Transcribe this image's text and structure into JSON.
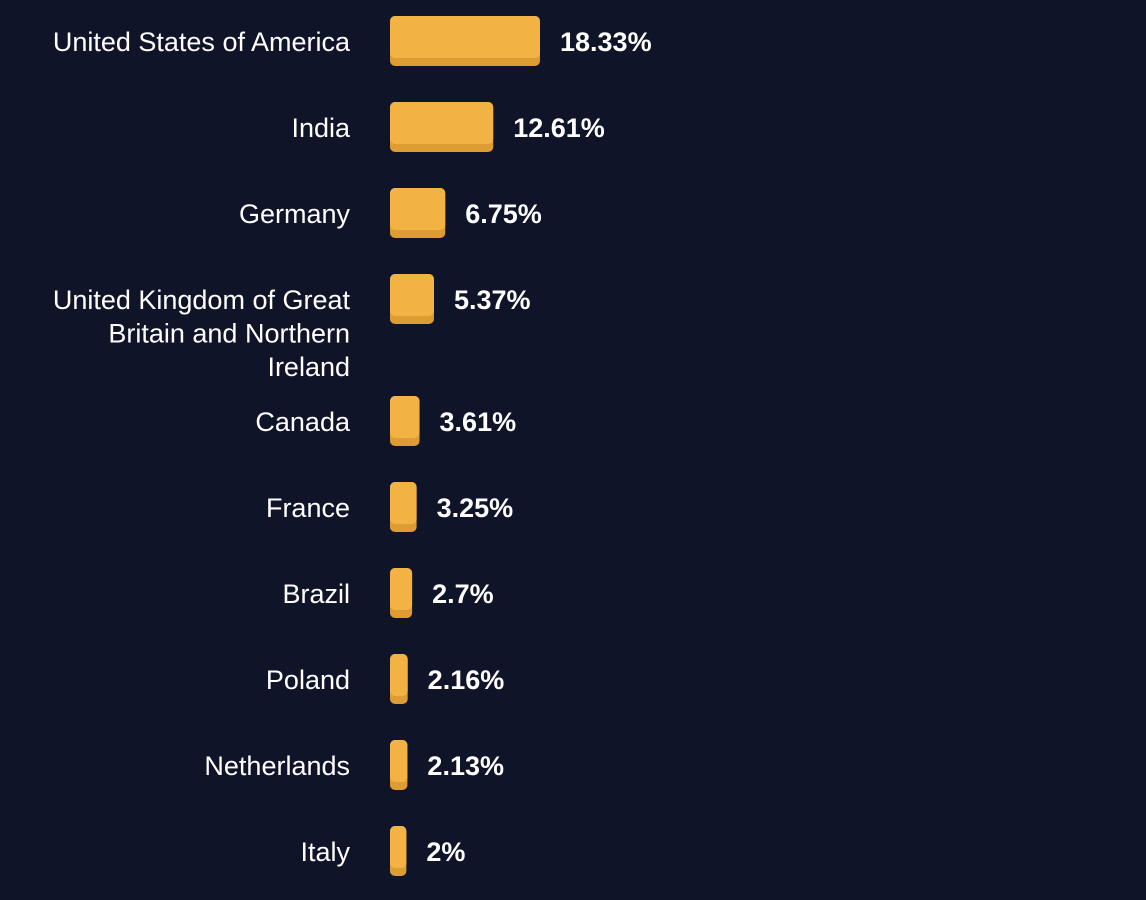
{
  "chart_data": {
    "type": "bar",
    "orientation": "horizontal",
    "categories": [
      "United States of America",
      "India",
      "Germany",
      "United Kingdom of Great Britain and Northern Ireland",
      "Canada",
      "France",
      "Brazil",
      "Poland",
      "Netherlands",
      "Italy"
    ],
    "category_lines": [
      [
        "United States of America"
      ],
      [
        "India"
      ],
      [
        "Germany"
      ],
      [
        "United Kingdom of Great",
        "Britain and Northern",
        "Ireland"
      ],
      [
        "Canada"
      ],
      [
        "France"
      ],
      [
        "Brazil"
      ],
      [
        "Poland"
      ],
      [
        "Netherlands"
      ],
      [
        "Italy"
      ]
    ],
    "values": [
      18.33,
      12.61,
      6.75,
      5.37,
      3.61,
      3.25,
      2.7,
      2.16,
      2.13,
      2
    ],
    "value_labels": [
      "18.33%",
      "12.61%",
      "6.75%",
      "5.37%",
      "3.61%",
      "3.25%",
      "2.7%",
      "2.16%",
      "2.13%",
      "2%"
    ],
    "unit": "%",
    "grid": false,
    "legend": "none",
    "colors": {
      "background": "#0f1429",
      "bar": "#f3b244",
      "bar_shade": "#dd9d33",
      "text": "#ffffff"
    }
  }
}
